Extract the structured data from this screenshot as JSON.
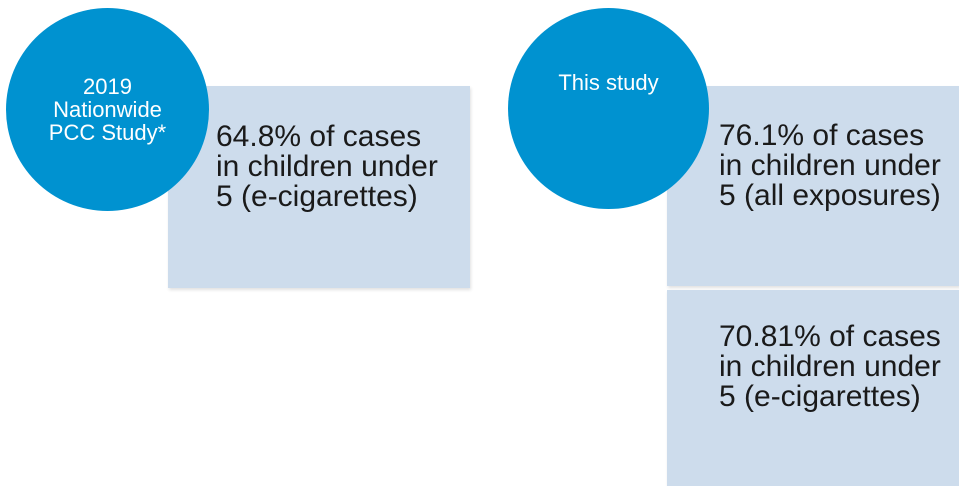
{
  "left_group": {
    "circle_label": "2019 Nationwide PCC Study*",
    "box_text": "64.8% of cases in children under 5 (e-cigarettes)"
  },
  "right_group": {
    "circle_label": "This study",
    "box_top_text": "76.1% of cases in children under 5 (all exposures)",
    "box_bottom_text": "70.81% of cases in children under 5 (e-cigarettes)"
  },
  "colors": {
    "circle_fill": "#0092d0",
    "box_fill": "#cddcec",
    "circle_text": "#ffffff",
    "box_text": "#1a1a1a"
  }
}
